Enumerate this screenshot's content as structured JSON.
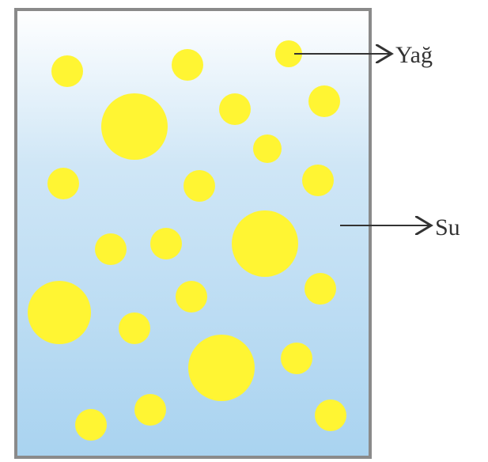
{
  "labels": {
    "oil": "Yağ",
    "water": "Su"
  }
}
